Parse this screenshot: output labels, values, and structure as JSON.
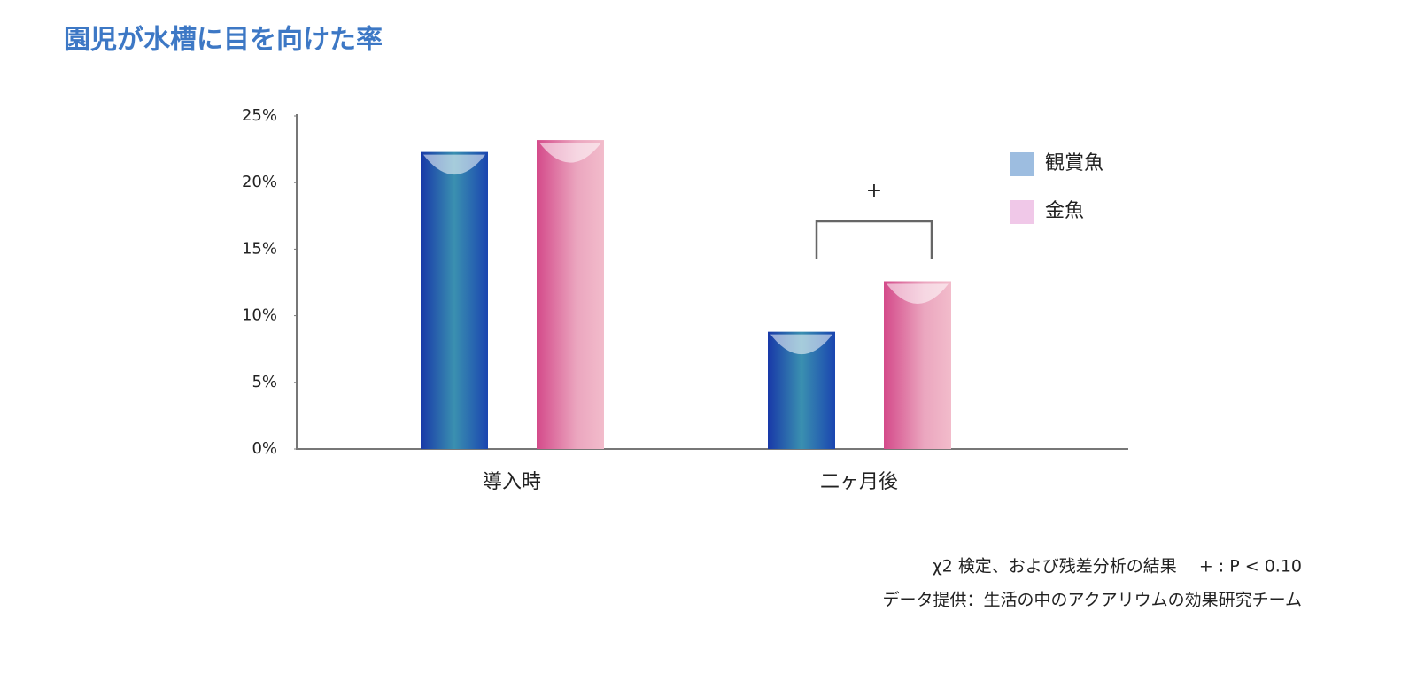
{
  "chart_data": {
    "type": "bar",
    "title": "園児が水槽に目を向けた率",
    "categories": [
      "導入時",
      "二ヶ月後"
    ],
    "series": [
      {
        "name": "観賞魚",
        "color": "#9dbde0",
        "values": [
          22.3,
          8.8
        ]
      },
      {
        "name": "金魚",
        "color": "#f0c8e8",
        "values": [
          23.2,
          12.6
        ]
      }
    ],
    "ylim": [
      0,
      25
    ],
    "yticks": [
      {
        "value": 0,
        "label": "0%"
      },
      {
        "value": 5,
        "label": "5%"
      },
      {
        "value": 10,
        "label": "10%"
      },
      {
        "value": 15,
        "label": "15%"
      },
      {
        "value": 20,
        "label": "20%"
      },
      {
        "value": 25,
        "label": "25%"
      }
    ],
    "legend": "right",
    "annotations": [
      "+"
    ],
    "notes": [
      "χ2 検定、および残差分析の結果　 + : P < 0.10",
      "データ提供：生活の中のアクアリウムの効果研究チーム"
    ]
  }
}
